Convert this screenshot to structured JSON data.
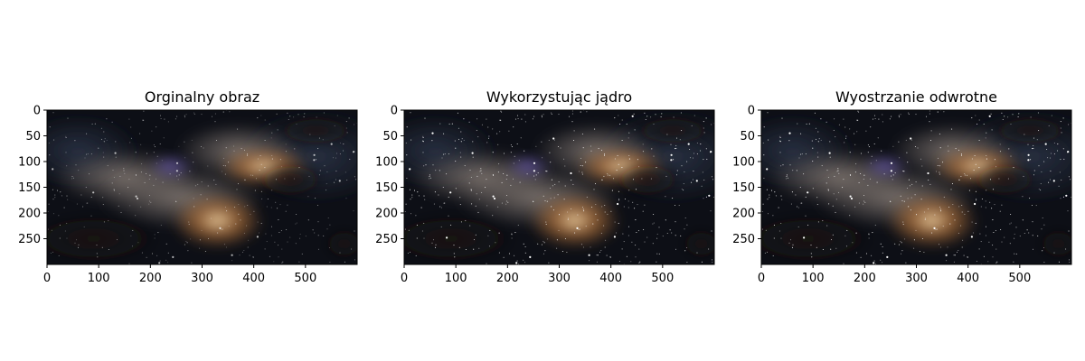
{
  "chart_data": [
    {
      "type": "image",
      "title": "Orginalny obraz",
      "xlim": [
        0,
        600
      ],
      "ylim": [
        300,
        0
      ],
      "xticks": [
        0,
        100,
        200,
        300,
        400,
        500
      ],
      "yticks": [
        0,
        50,
        100,
        150,
        200,
        250
      ],
      "image_content": "milky-way-night-sky",
      "sharpness": 0
    },
    {
      "type": "image",
      "title": "Wykorzystując jądro",
      "xlim": [
        0,
        600
      ],
      "ylim": [
        300,
        0
      ],
      "xticks": [
        0,
        100,
        200,
        300,
        400,
        500
      ],
      "yticks": [
        0,
        50,
        100,
        150,
        200,
        250
      ],
      "image_content": "milky-way-night-sky",
      "sharpness": 1
    },
    {
      "type": "image",
      "title": "Wyostrzanie odwrotne",
      "xlim": [
        0,
        600
      ],
      "ylim": [
        300,
        0
      ],
      "xticks": [
        0,
        100,
        200,
        300,
        400,
        500
      ],
      "yticks": [
        0,
        50,
        100,
        150,
        200,
        250
      ],
      "image_content": "milky-way-night-sky",
      "sharpness": 1
    }
  ],
  "colors": {
    "sky_dark": "#0d0f16",
    "sky_blue": "#2a3346",
    "dust_dark": "#1a1512",
    "core_warm": "#f4d7a8",
    "core_orange": "#c07a3c",
    "nebula_violet": "#6a5ab0",
    "band_gray": "#8a7f78"
  }
}
